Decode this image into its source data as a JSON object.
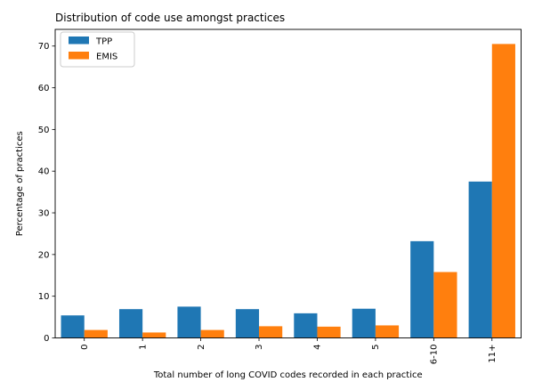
{
  "chart_data": {
    "type": "bar",
    "bar_layout": "grouped",
    "title": "Distribution of code use amongst practices",
    "xlabel": "Total number of long COVID codes recorded in each practice",
    "ylabel": "Percentage of practices",
    "categories": [
      "0",
      "1",
      "2",
      "3",
      "4",
      "5",
      "6-10",
      "11+"
    ],
    "series": [
      {
        "name": "TPP",
        "color": "#1f77b4",
        "values": [
          5.4,
          6.9,
          7.5,
          6.9,
          5.9,
          7.0,
          23.2,
          37.5
        ]
      },
      {
        "name": "EMIS",
        "color": "#ff7f0e",
        "values": [
          1.9,
          1.3,
          1.9,
          2.8,
          2.7,
          3.0,
          15.8,
          70.5
        ]
      }
    ],
    "yticks": [
      0,
      10,
      20,
      30,
      40,
      50,
      60,
      70
    ],
    "ylim": [
      0,
      74
    ],
    "grid": false,
    "legend_position": "upper left",
    "xtick_rotation": 90
  },
  "colors": {
    "background": "#ffffff",
    "axis": "#000000",
    "text": "#000000",
    "legend_border": "#cccccc"
  }
}
